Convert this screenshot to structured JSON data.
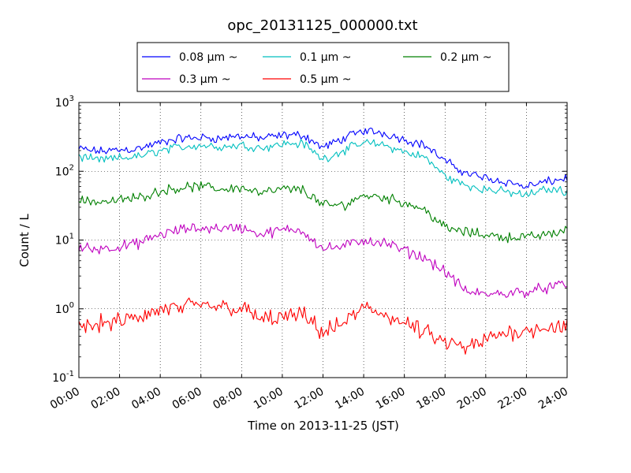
{
  "chart_data": {
    "type": "line",
    "title": "opc_20131125_000000.txt",
    "xlabel": "Time on 2013-11-25 (JST)",
    "ylabel": "Count / L",
    "yscale": "log",
    "xlim": [
      "00:00",
      "24:00"
    ],
    "ylim": [
      0.1,
      1000
    ],
    "grid": true,
    "legend_position": "top-center",
    "x_ticks": [
      "00:00",
      "02:00",
      "04:00",
      "06:00",
      "08:00",
      "10:00",
      "12:00",
      "14:00",
      "16:00",
      "18:00",
      "20:00",
      "22:00",
      "24:00"
    ],
    "y_ticks": [
      {
        "value": 0.1,
        "base": "10",
        "exp": "-1"
      },
      {
        "value": 1,
        "base": "10",
        "exp": "0"
      },
      {
        "value": 10,
        "base": "10",
        "exp": "1"
      },
      {
        "value": 100,
        "base": "10",
        "exp": "2"
      },
      {
        "value": 1000,
        "base": "10",
        "exp": "3"
      }
    ],
    "x": [
      "00:00",
      "01:00",
      "02:00",
      "03:00",
      "04:00",
      "05:00",
      "06:00",
      "07:00",
      "08:00",
      "09:00",
      "10:00",
      "11:00",
      "12:00",
      "13:00",
      "14:00",
      "15:00",
      "16:00",
      "17:00",
      "18:00",
      "19:00",
      "20:00",
      "21:00",
      "22:00",
      "23:00",
      "24:00"
    ],
    "series": [
      {
        "name": "0.08 μm ~",
        "color": "#0000ff",
        "noise": 0.08,
        "values": [
          210,
          195,
          205,
          215,
          260,
          300,
          310,
          300,
          330,
          300,
          330,
          340,
          220,
          300,
          390,
          360,
          290,
          240,
          140,
          95,
          80,
          70,
          60,
          70,
          80
        ]
      },
      {
        "name": "0.1 μm ~",
        "color": "#00bfbf",
        "noise": 0.08,
        "values": [
          160,
          145,
          155,
          165,
          200,
          225,
          240,
          225,
          240,
          220,
          250,
          255,
          150,
          200,
          260,
          240,
          190,
          160,
          85,
          62,
          55,
          50,
          45,
          55,
          52
        ]
      },
      {
        "name": "0.2 μm ~",
        "color": "#008000",
        "noise": 0.09,
        "values": [
          38,
          36,
          38,
          42,
          52,
          58,
          60,
          55,
          58,
          48,
          55,
          54,
          32,
          32,
          45,
          42,
          35,
          28,
          15,
          13,
          12,
          11,
          11,
          12,
          14
        ]
      },
      {
        "name": "0.3 μm ~",
        "color": "#bf00bf",
        "noise": 0.1,
        "values": [
          7.8,
          7.5,
          8,
          9,
          12,
          14,
          15,
          15,
          15,
          12,
          14,
          14,
          7.5,
          8,
          10,
          9,
          7,
          5.5,
          3.5,
          1.8,
          1.6,
          1.7,
          1.8,
          2.0,
          2.3
        ]
      },
      {
        "name": "0.5 μm ~",
        "color": "#ff0000",
        "noise": 0.16,
        "values": [
          0.55,
          0.6,
          0.65,
          0.75,
          0.95,
          1.05,
          1.1,
          1.1,
          1.0,
          0.7,
          0.75,
          0.8,
          0.45,
          0.6,
          1.05,
          0.85,
          0.6,
          0.45,
          0.32,
          0.26,
          0.35,
          0.45,
          0.5,
          0.55,
          0.55
        ]
      }
    ]
  }
}
